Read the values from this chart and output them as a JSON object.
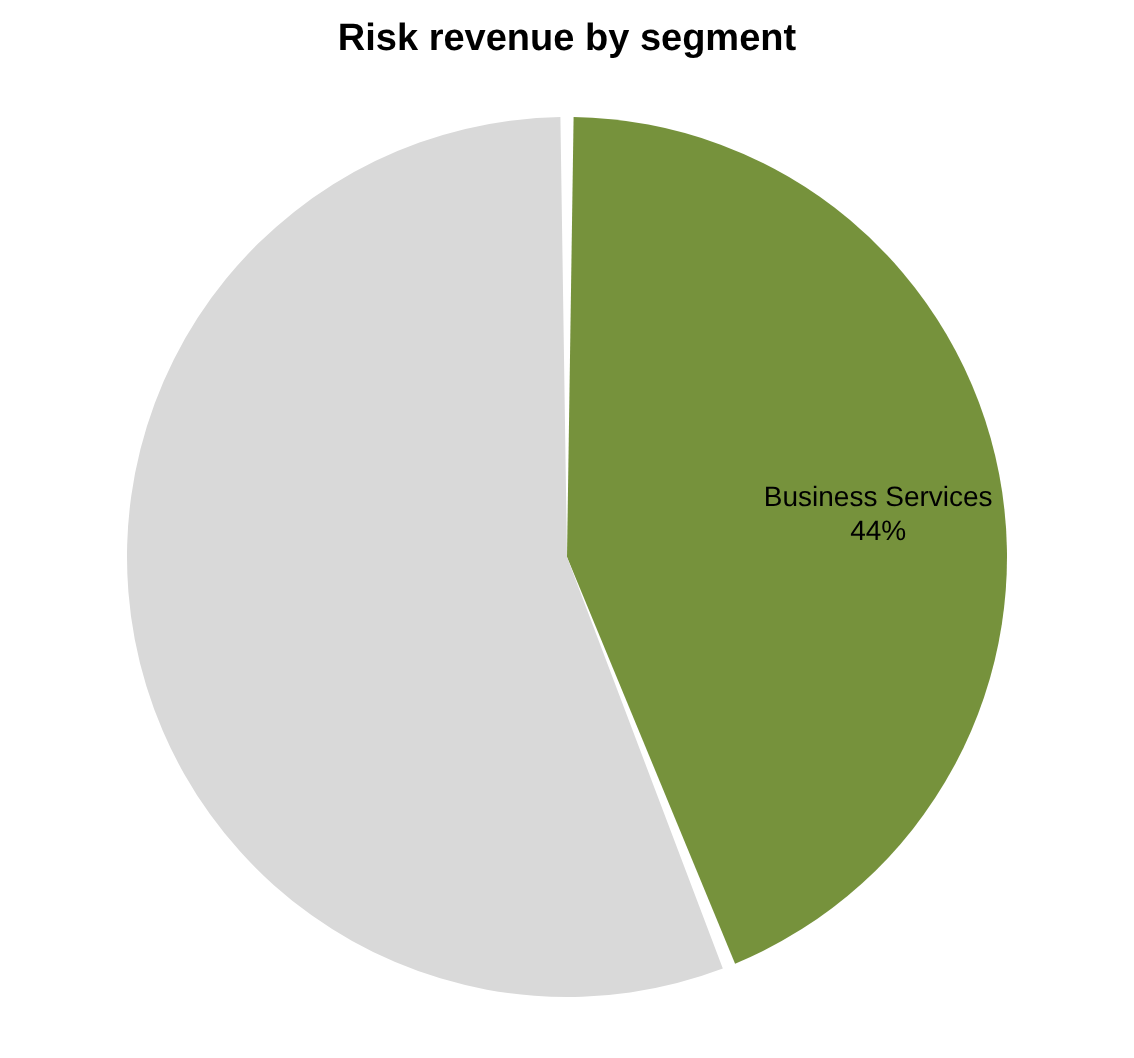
{
  "chart_data": {
    "type": "pie",
    "title": "Risk revenue by segment",
    "categories": [
      "Business Services",
      null
    ],
    "values": [
      44,
      56
    ],
    "colors": [
      "#76923c",
      "#d9d9d9"
    ],
    "value_labels": [
      "44%",
      null
    ],
    "legend": false
  }
}
